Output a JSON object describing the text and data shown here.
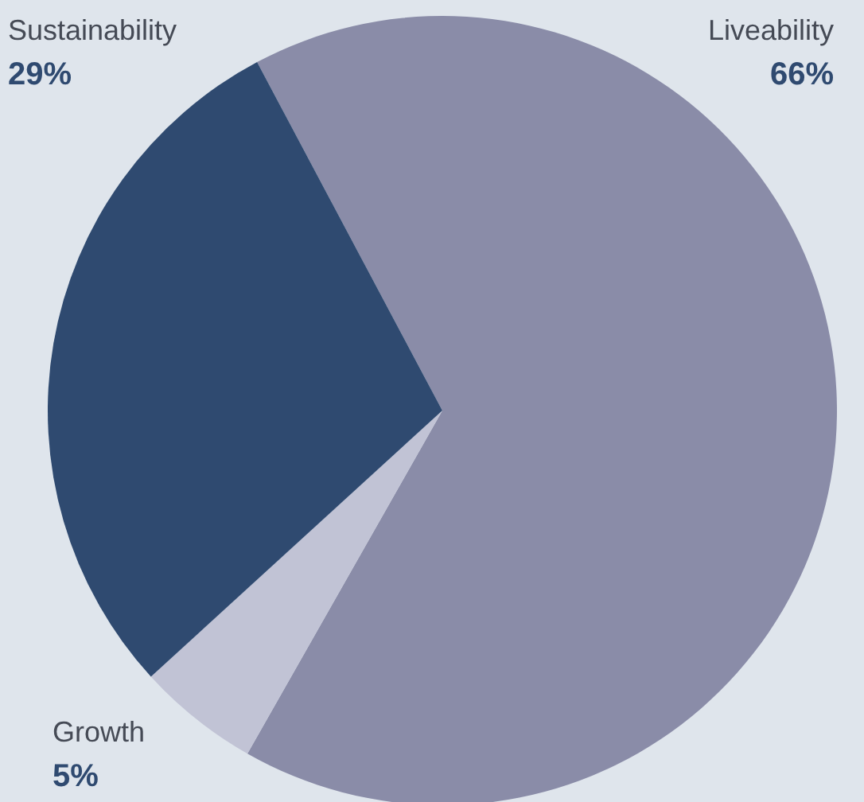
{
  "chart_data": {
    "type": "pie",
    "categories": [
      "Liveability",
      "Growth",
      "Sustainability"
    ],
    "values": [
      66,
      5,
      29
    ],
    "colors": [
      "#8a8ca8",
      "#c1c3d5",
      "#2f4a70"
    ],
    "value_labels": [
      "66%",
      "5%",
      "29%"
    ]
  }
}
